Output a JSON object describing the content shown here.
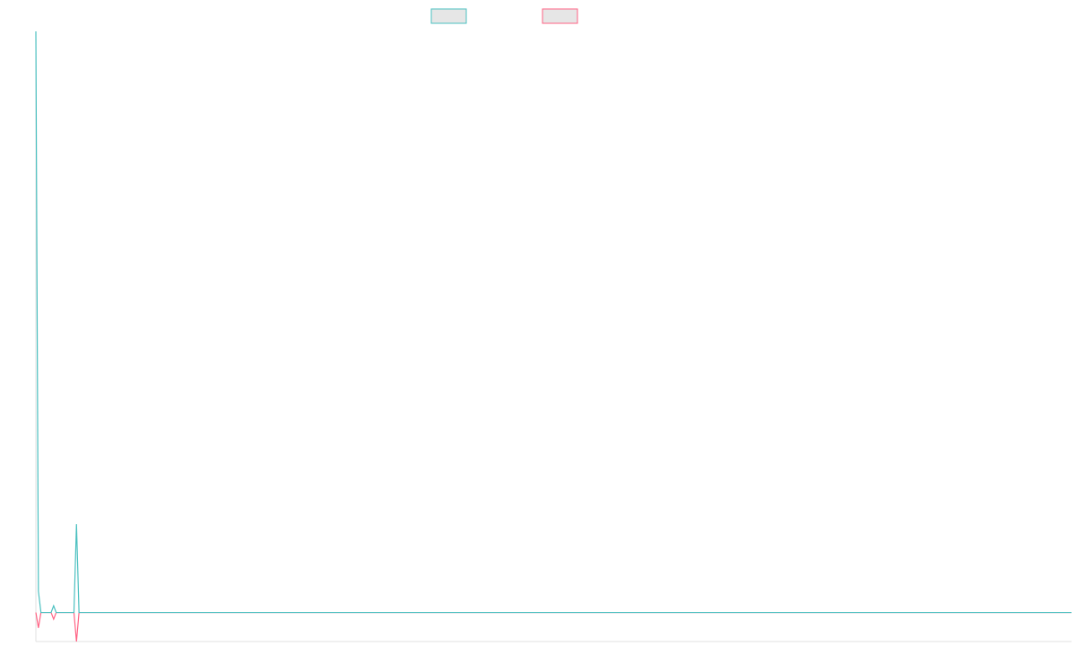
{
  "chart_data": {
    "type": "line",
    "x": [
      0,
      1,
      2,
      6,
      7,
      8,
      15,
      16,
      17,
      408
    ],
    "xlim": [
      0,
      408
    ],
    "ylim": [
      -1,
      20
    ],
    "series": [
      {
        "color": "#4bc0c0",
        "values": [
          20,
          0.73,
          0,
          0,
          0.23,
          0,
          0,
          3.04,
          0,
          0
        ]
      },
      {
        "color": "#ff6384",
        "values": [
          0,
          -0.53,
          0,
          0,
          -0.23,
          0,
          0,
          -1,
          0,
          0
        ]
      }
    ]
  }
}
